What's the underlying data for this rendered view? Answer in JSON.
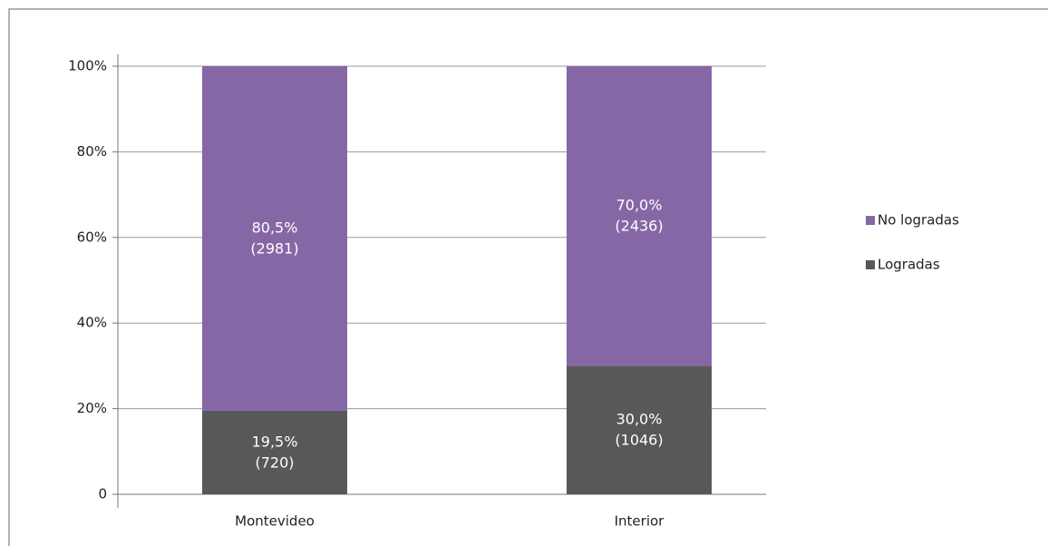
{
  "chart_data": {
    "type": "stacked_bar",
    "categories": [
      "Montevideo",
      "Interior"
    ],
    "series": [
      {
        "name": "Logradas",
        "color": "#58585a",
        "values": [
          19.5,
          30.0
        ],
        "value_labels": [
          "19,5%",
          "30,0%"
        ],
        "count_labels": [
          "(720)",
          "(1046)"
        ]
      },
      {
        "name": "No logradas",
        "color": "#8667a6",
        "values": [
          80.5,
          70.0
        ],
        "value_labels": [
          "80,5%",
          "70,0%"
        ],
        "count_labels": [
          "(2981)",
          "(2436)"
        ]
      }
    ],
    "ylim": [
      0,
      100
    ],
    "yticks": [
      0,
      {
        "value": 20,
        "label": "20%"
      },
      {
        "value": 40,
        "label": "40%"
      },
      {
        "value": 60,
        "label": "60%"
      },
      {
        "value": 80,
        "label": "80%"
      },
      {
        "value": 100,
        "label": "100%"
      }
    ],
    "grid": true,
    "legend": "right"
  }
}
